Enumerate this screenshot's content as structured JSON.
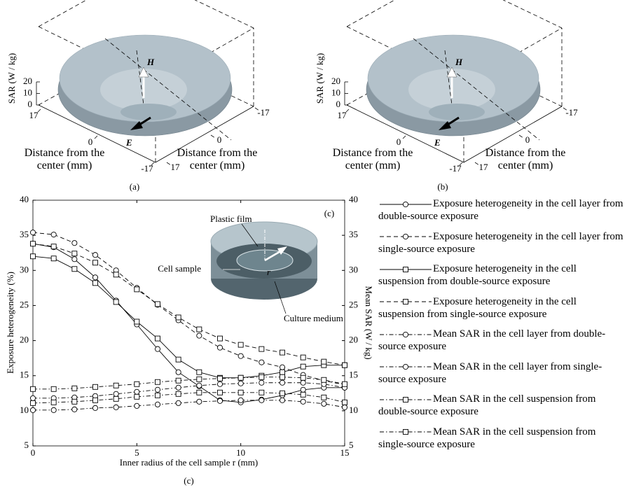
{
  "panels": [
    {
      "label": "(a)",
      "zlabel": "SAR (W / kg)",
      "zlim": [
        0,
        20
      ],
      "zticks": [
        0,
        10,
        20
      ],
      "xlim": [
        17,
        -17
      ],
      "xticks": [
        17,
        0,
        -17
      ],
      "ylim": [
        17,
        -17
      ],
      "yticks": [
        17,
        0,
        -17
      ],
      "xlabel": "Distance from the center (mm)",
      "ylabel": "Distance from the center (mm)",
      "h_label": "H",
      "e_label": "E"
    },
    {
      "label": "(b)",
      "zlabel": "SAR (W / kg)",
      "zlim": [
        0,
        20
      ],
      "zticks": [
        0,
        10,
        20
      ],
      "xlim": [
        17,
        -17
      ],
      "xticks": [
        17,
        0,
        -17
      ],
      "ylim": [
        17,
        -17
      ],
      "yticks": [
        17,
        0,
        -17
      ],
      "xlabel": "Distance from the center (mm)",
      "ylabel": "Distance from the center (mm)",
      "h_label": "H",
      "e_label": "E"
    }
  ],
  "chart_data": {
    "type": "line",
    "panel_label": "(c)",
    "caption": "(c)",
    "xlabel": "Inner radius of the cell sample r (mm)",
    "ylabel": "Exposure heterogeneity (%)",
    "y2label": "Mean SAR (W / kg)",
    "x": [
      0,
      1,
      2,
      3,
      4,
      5,
      6,
      7,
      8,
      9,
      10,
      11,
      12,
      13,
      14,
      15
    ],
    "xlim": [
      0,
      15
    ],
    "xticks": [
      0,
      5,
      10,
      15
    ],
    "ylim": [
      5,
      40
    ],
    "yticks": [
      5,
      10,
      15,
      20,
      25,
      30,
      35,
      40
    ],
    "y2lim": [
      5,
      40
    ],
    "y2ticks": [
      5,
      10,
      15,
      20,
      25,
      30,
      35,
      40
    ],
    "grid": false,
    "annotations": [
      "Plastic film",
      "Cell sample",
      "Culture medium",
      "r"
    ],
    "series": [
      {
        "name": "Exposure heterogeneity in the cell layer from double-source exposure",
        "color": "#000000",
        "dash": "solid",
        "marker": "circle",
        "values": [
          33.8,
          33.3,
          31.6,
          29.0,
          25.7,
          22.3,
          18.8,
          15.5,
          13.5,
          11.5,
          11.2,
          11.6,
          12.2,
          13.0,
          13.3,
          13.3
        ]
      },
      {
        "name": "Exposure heterogeneity in the cell layer from single-source exposure",
        "color": "#000000",
        "dash": "dashed",
        "marker": "circle",
        "values": [
          35.4,
          35.1,
          33.9,
          32.2,
          30.0,
          27.5,
          25.1,
          22.9,
          20.7,
          19.0,
          17.8,
          16.9,
          16.2,
          15.1,
          14.3,
          13.7
        ]
      },
      {
        "name": "Exposure heterogeneity in the cell suspension from double-source exposure",
        "color": "#000000",
        "dash": "solid",
        "marker": "square",
        "values": [
          32.0,
          31.7,
          30.2,
          28.2,
          25.5,
          22.7,
          20.3,
          17.3,
          15.5,
          14.7,
          14.7,
          15.0,
          15.5,
          16.3,
          16.5,
          16.5
        ]
      },
      {
        "name": "Exposure heterogeneity in the cell suspension from single-source exposure",
        "color": "#000000",
        "dash": "dashed",
        "marker": "square",
        "values": [
          33.8,
          33.4,
          32.4,
          31.1,
          29.4,
          27.3,
          25.2,
          23.3,
          21.6,
          20.3,
          19.4,
          18.8,
          18.3,
          17.6,
          17.0,
          16.5
        ]
      },
      {
        "name": "Mean SAR in the cell layer from double-source exposure",
        "color": "#000000",
        "dash": "dashdot",
        "marker": "circle",
        "axis": "y2",
        "values": [
          11.8,
          11.8,
          11.9,
          12.1,
          12.4,
          12.7,
          13.0,
          13.3,
          13.6,
          13.8,
          13.9,
          14.0,
          14.0,
          14.0,
          13.8,
          13.3
        ]
      },
      {
        "name": "Mean SAR in the cell layer from single-source exposure",
        "color": "#000000",
        "dash": "dashdot",
        "marker": "circle",
        "axis": "y2",
        "values": [
          10.1,
          10.1,
          10.2,
          10.4,
          10.5,
          10.7,
          10.9,
          11.1,
          11.3,
          11.4,
          11.5,
          11.5,
          11.5,
          11.3,
          11.0,
          10.5
        ]
      },
      {
        "name": "Mean SAR in the cell suspension from double-source exposure",
        "color": "#000000",
        "dash": "dashdot",
        "marker": "square",
        "axis": "y2",
        "values": [
          11.1,
          11.2,
          11.3,
          11.5,
          11.7,
          12.0,
          12.2,
          12.4,
          12.6,
          12.6,
          12.6,
          12.6,
          12.5,
          12.3,
          11.9,
          11.2
        ]
      },
      {
        "name": "Mean SAR in the cell suspension from single-source exposure",
        "color": "#000000",
        "dash": "dashdot",
        "marker": "square",
        "axis": "y2",
        "values": [
          13.1,
          13.1,
          13.2,
          13.4,
          13.6,
          13.8,
          14.1,
          14.3,
          14.5,
          14.6,
          14.7,
          14.8,
          14.8,
          14.7,
          14.4,
          13.8
        ]
      }
    ]
  }
}
